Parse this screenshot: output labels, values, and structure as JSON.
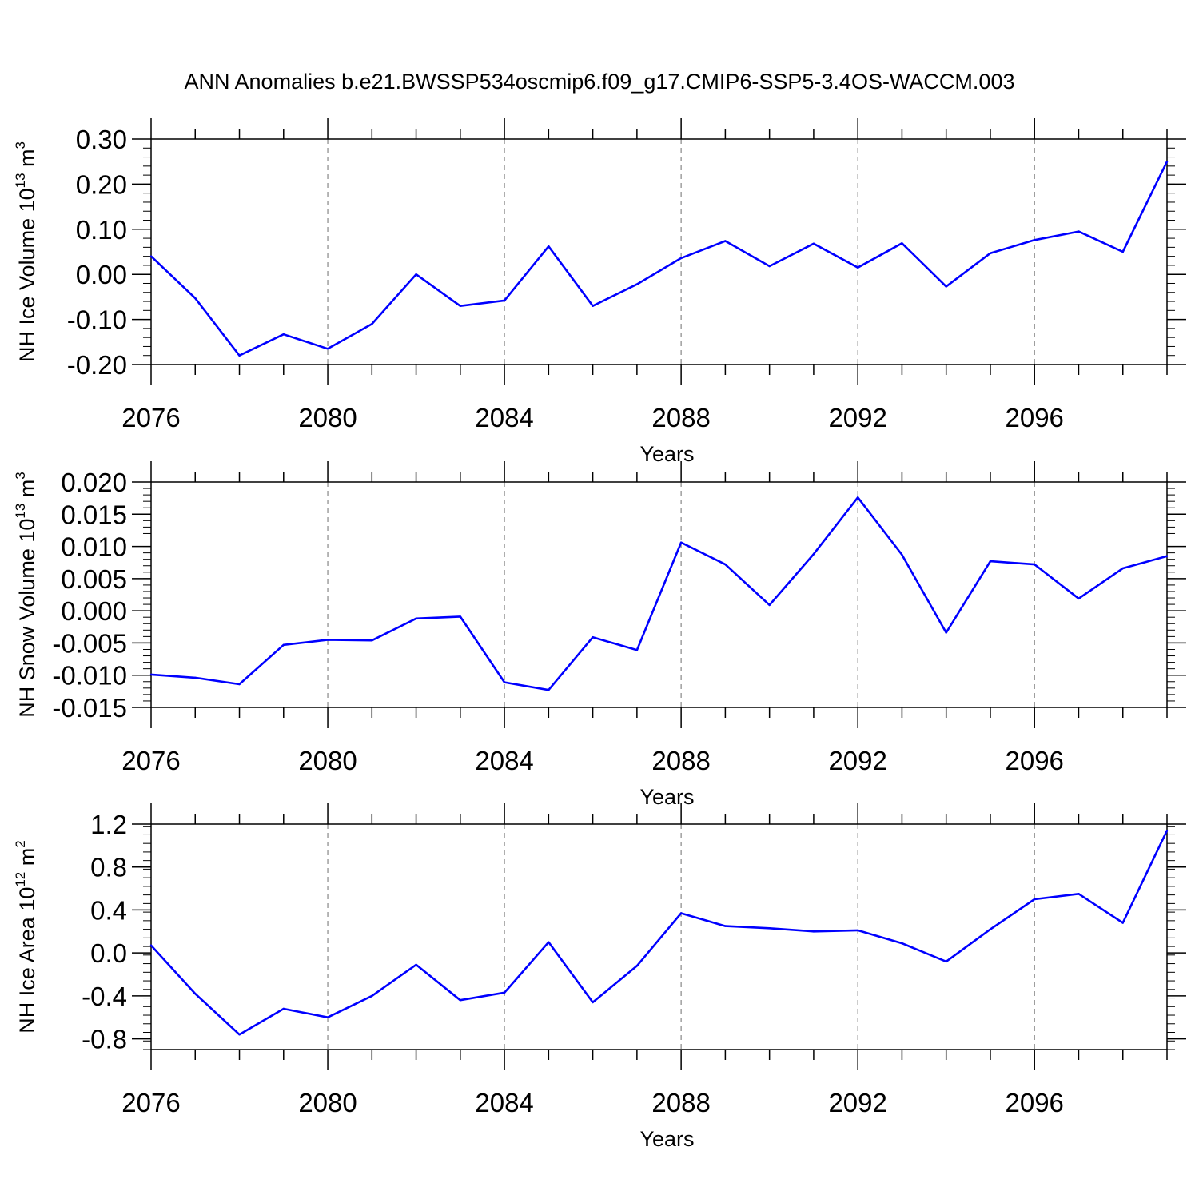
{
  "title": "ANN Anomalies b.e21.BWSSP534oscmip6.f09_g17.CMIP6-SSP5-3.4OS-WACCM.003",
  "series_color": "#0000ff",
  "chart_data": [
    {
      "type": "line",
      "name": "nh-ice-volume",
      "ylabel": {
        "main": "NH Ice Volume 10",
        "exp": "13",
        "unit": " m",
        "unit_exp": "3"
      },
      "xlabel": "Years",
      "xlim": [
        2076,
        2099
      ],
      "ylim": [
        -0.2,
        0.3
      ],
      "x_ticks": [
        2076,
        2080,
        2084,
        2088,
        2092,
        2096
      ],
      "x_tick_labels": [
        "2076",
        "2080",
        "2084",
        "2088",
        "2092",
        "2096"
      ],
      "y_ticks": [
        -0.2,
        -0.1,
        0.0,
        0.1,
        0.2,
        0.3
      ],
      "y_tick_labels": [
        "-0.20",
        "-0.10",
        "0.00",
        "0.10",
        "0.20",
        "0.30"
      ],
      "y_minor_step": 0.02,
      "x": [
        2076,
        2077,
        2078,
        2079,
        2080,
        2081,
        2082,
        2083,
        2084,
        2085,
        2086,
        2087,
        2088,
        2089,
        2090,
        2091,
        2092,
        2093,
        2094,
        2095,
        2096,
        2097,
        2098,
        2099
      ],
      "values": [
        0.04,
        -0.053,
        -0.18,
        -0.133,
        -0.165,
        -0.11,
        0.0,
        -0.07,
        -0.058,
        0.062,
        -0.07,
        -0.022,
        0.036,
        0.074,
        0.018,
        0.068,
        0.015,
        0.069,
        -0.027,
        0.047,
        0.076,
        0.095,
        0.05,
        0.25
      ]
    },
    {
      "type": "line",
      "name": "nh-snow-volume",
      "ylabel": {
        "main": "NH Snow Volume 10",
        "exp": "13",
        "unit": " m",
        "unit_exp": "3"
      },
      "xlabel": "Years",
      "xlim": [
        2076,
        2099
      ],
      "ylim": [
        -0.015,
        0.02
      ],
      "x_ticks": [
        2076,
        2080,
        2084,
        2088,
        2092,
        2096
      ],
      "x_tick_labels": [
        "2076",
        "2080",
        "2084",
        "2088",
        "2092",
        "2096"
      ],
      "y_ticks": [
        -0.015,
        -0.01,
        -0.005,
        0.0,
        0.005,
        0.01,
        0.015,
        0.02
      ],
      "y_tick_labels": [
        "-0.015",
        "-0.010",
        "-0.005",
        "0.000",
        "0.005",
        "0.010",
        "0.015",
        "0.020"
      ],
      "y_minor_step": 0.001,
      "x": [
        2076,
        2077,
        2078,
        2079,
        2080,
        2081,
        2082,
        2083,
        2084,
        2085,
        2086,
        2087,
        2088,
        2089,
        2090,
        2091,
        2092,
        2093,
        2094,
        2095,
        2096,
        2097,
        2098,
        2099
      ],
      "values": [
        -0.0099,
        -0.0104,
        -0.0114,
        -0.0053,
        -0.0045,
        -0.0046,
        -0.0012,
        -0.0009,
        -0.0111,
        -0.0123,
        -0.0041,
        -0.0061,
        0.0106,
        0.0072,
        0.0009,
        0.0088,
        0.0176,
        0.0087,
        -0.0034,
        0.0077,
        0.0072,
        0.0019,
        0.0066,
        0.0085
      ]
    },
    {
      "type": "line",
      "name": "nh-ice-area",
      "ylabel": {
        "main": "NH Ice Area 10",
        "exp": "12",
        "unit": " m",
        "unit_exp": "2"
      },
      "xlabel": "Years",
      "xlim": [
        2076,
        2099
      ],
      "ylim": [
        -0.9,
        1.2
      ],
      "x_ticks": [
        2076,
        2080,
        2084,
        2088,
        2092,
        2096
      ],
      "x_tick_labels": [
        "2076",
        "2080",
        "2084",
        "2088",
        "2092",
        "2096"
      ],
      "y_ticks": [
        -0.8,
        -0.4,
        0.0,
        0.4,
        0.8,
        1.2
      ],
      "y_tick_labels": [
        "-0.8",
        "-0.4",
        "0.0",
        "0.4",
        "0.8",
        "1.2"
      ],
      "y_minor_step": 0.08,
      "x": [
        2076,
        2077,
        2078,
        2079,
        2080,
        2081,
        2082,
        2083,
        2084,
        2085,
        2086,
        2087,
        2088,
        2089,
        2090,
        2091,
        2092,
        2093,
        2094,
        2095,
        2096,
        2097,
        2098,
        2099
      ],
      "values": [
        0.07,
        -0.38,
        -0.76,
        -0.52,
        -0.6,
        -0.4,
        -0.11,
        -0.44,
        -0.37,
        0.1,
        -0.46,
        -0.12,
        0.37,
        0.25,
        0.23,
        0.2,
        0.21,
        0.09,
        -0.08,
        0.22,
        0.5,
        0.55,
        0.28,
        1.14
      ]
    }
  ]
}
